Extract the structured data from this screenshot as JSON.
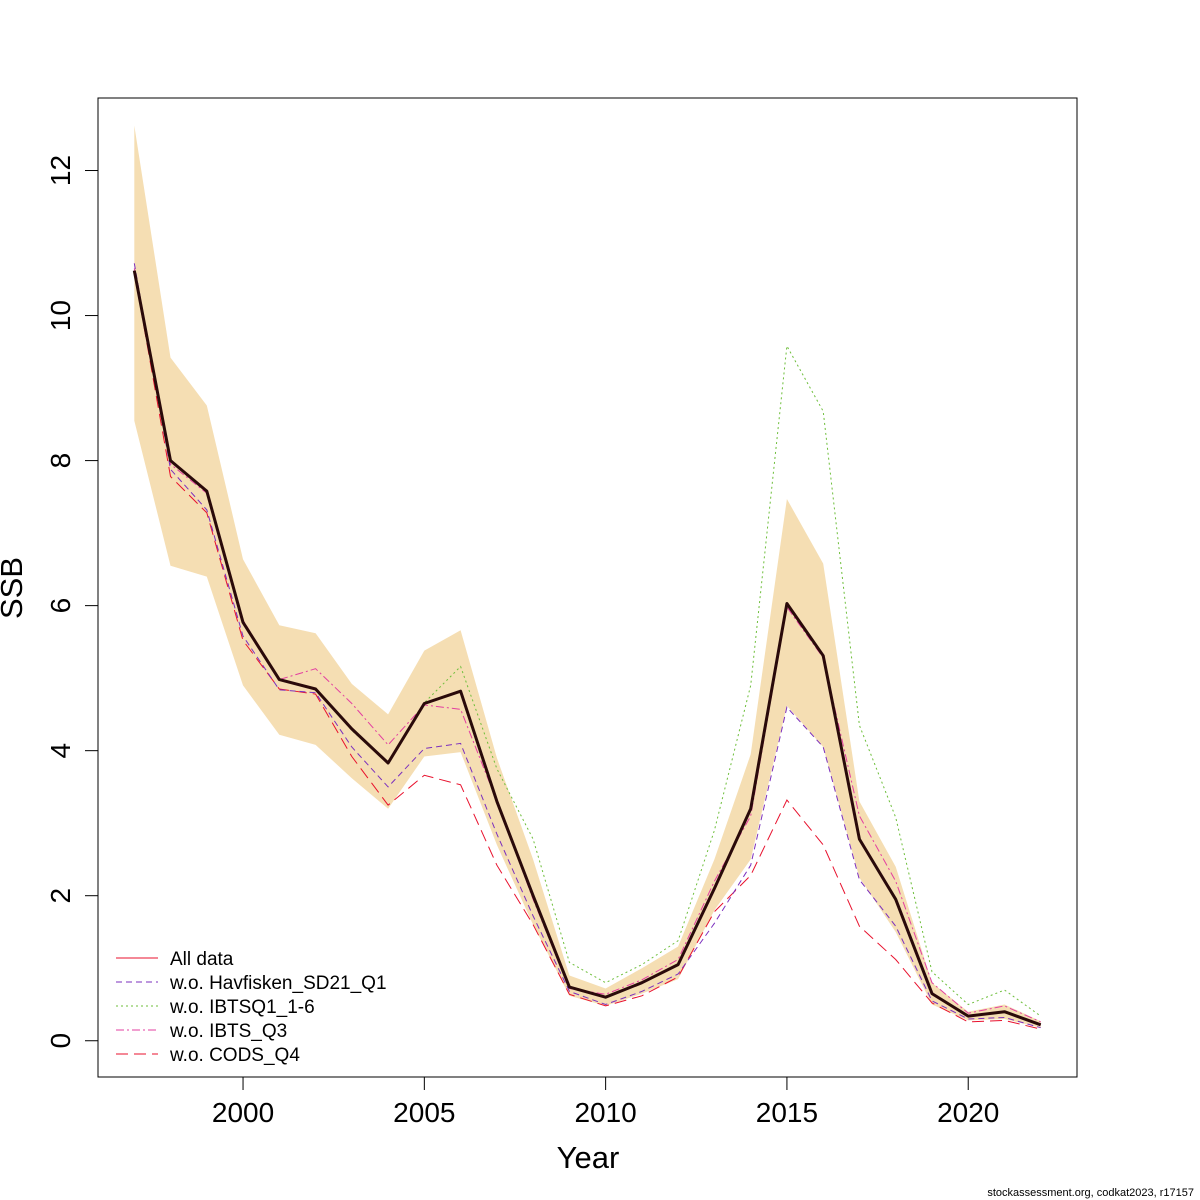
{
  "footer_text": "stockassessment.org, codkat2023, r17157",
  "chart_data": {
    "type": "line",
    "xlabel": "Year",
    "ylabel": "SSB",
    "xlim": [
      1996.0,
      2023.0
    ],
    "ylim": [
      -0.5,
      13.0
    ],
    "x_ticks": [
      2000,
      2005,
      2010,
      2015,
      2020
    ],
    "y_ticks": [
      0,
      2,
      4,
      6,
      8,
      10,
      12
    ],
    "grid": false,
    "legend_position": "bottom-left",
    "x": [
      1997,
      1998,
      1999,
      2000,
      2001,
      2002,
      2003,
      2004,
      2005,
      2006,
      2007,
      2008,
      2009,
      2010,
      2011,
      2012,
      2013,
      2014,
      2015,
      2016,
      2017,
      2018,
      2019,
      2020,
      2021,
      2022
    ],
    "confidence_band": {
      "color": "#F5DEB3",
      "lower": [
        8.55,
        6.55,
        6.4,
        4.9,
        4.22,
        4.08,
        3.62,
        3.2,
        3.92,
        3.98,
        2.7,
        1.6,
        0.62,
        0.48,
        0.65,
        0.85,
        1.8,
        2.5,
        4.62,
        4.05,
        2.25,
        1.5,
        0.5,
        0.28,
        0.3,
        0.18
      ],
      "upper": [
        12.62,
        9.42,
        8.76,
        6.64,
        5.73,
        5.62,
        4.92,
        4.5,
        5.38,
        5.66,
        3.9,
        2.5,
        0.9,
        0.72,
        1.0,
        1.3,
        2.5,
        3.95,
        7.47,
        6.58,
        3.3,
        2.4,
        0.8,
        0.4,
        0.5,
        0.27
      ]
    },
    "series": [
      {
        "name": "All data",
        "color": "#E8112D",
        "dash": "solid",
        "values": [
          10.62,
          8.0,
          7.58,
          5.77,
          4.98,
          4.85,
          4.3,
          3.83,
          4.65,
          4.82,
          3.3,
          2.0,
          0.74,
          0.6,
          0.8,
          1.05,
          2.1,
          3.2,
          6.03,
          5.31,
          2.78,
          1.95,
          0.65,
          0.34,
          0.4,
          0.22
        ]
      },
      {
        "name": "w.o. Havfisken_SD21_Q1",
        "color": "#7B2FBE",
        "dash": "6,4",
        "values": [
          10.72,
          7.88,
          7.32,
          5.58,
          4.84,
          4.8,
          4.05,
          3.5,
          4.03,
          4.1,
          2.85,
          1.72,
          0.68,
          0.5,
          0.68,
          0.92,
          1.62,
          2.42,
          4.6,
          4.05,
          2.22,
          1.58,
          0.55,
          0.3,
          0.32,
          0.18
        ]
      },
      {
        "name": "w.o. IBTSQ1_1-6",
        "color": "#6DBE3A",
        "dash": "2,3",
        "values": [
          10.58,
          8.02,
          7.56,
          5.76,
          4.97,
          4.84,
          4.28,
          3.82,
          4.66,
          5.16,
          3.75,
          2.78,
          1.08,
          0.8,
          1.05,
          1.38,
          2.9,
          4.9,
          9.58,
          8.68,
          4.35,
          3.08,
          0.95,
          0.5,
          0.7,
          0.34
        ]
      },
      {
        "name": "w.o. IBTS_Q3",
        "color": "#E33FA0",
        "dash": "8,3,2,3",
        "values": [
          10.65,
          7.95,
          7.55,
          5.8,
          4.98,
          5.13,
          4.65,
          4.08,
          4.63,
          4.57,
          3.3,
          1.95,
          0.72,
          0.64,
          0.84,
          1.12,
          2.2,
          3.1,
          5.98,
          5.28,
          3.1,
          2.2,
          0.8,
          0.38,
          0.48,
          0.26
        ]
      },
      {
        "name": "w.o. CODS_Q4",
        "color": "#E8112D",
        "dash": "12,6",
        "values": [
          10.6,
          7.78,
          7.28,
          5.52,
          4.85,
          4.78,
          3.92,
          3.25,
          3.66,
          3.53,
          2.42,
          1.6,
          0.64,
          0.48,
          0.62,
          0.88,
          1.78,
          2.28,
          3.32,
          2.7,
          1.58,
          1.12,
          0.52,
          0.26,
          0.28,
          0.16
        ]
      }
    ],
    "main_line": {
      "color": "#2A0A0A",
      "values": [
        10.62,
        8.0,
        7.58,
        5.77,
        4.98,
        4.85,
        4.3,
        3.83,
        4.65,
        4.82,
        3.3,
        2.0,
        0.74,
        0.6,
        0.8,
        1.05,
        2.1,
        3.2,
        6.03,
        5.31,
        2.78,
        1.95,
        0.65,
        0.34,
        0.4,
        0.22
      ]
    }
  }
}
